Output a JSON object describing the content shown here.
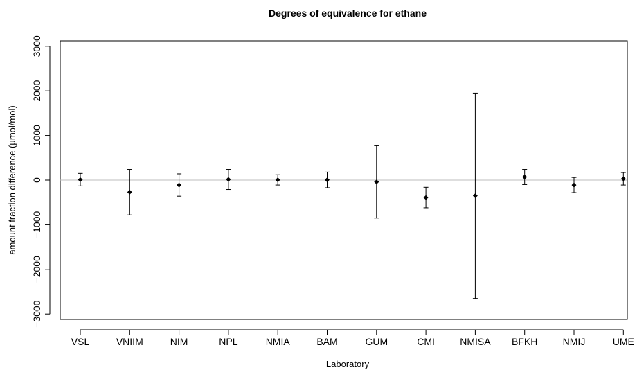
{
  "chart_data": {
    "type": "scatter",
    "title": "Degrees of equivalence for ethane",
    "xlabel": "Laboratory",
    "ylabel": "amount fraction difference (µmol/mol)",
    "categories": [
      "VSL",
      "VNIIM",
      "NIM",
      "NPL",
      "NMIA",
      "BAM",
      "GUM",
      "CMI",
      "NMISA",
      "BFKH",
      "NMIJ",
      "UME"
    ],
    "series": [
      {
        "values": [
          10,
          -270,
          -110,
          15,
          5,
          5,
          -40,
          -390,
          -350,
          70,
          -110,
          30
        ],
        "upper": [
          150,
          240,
          140,
          240,
          120,
          180,
          770,
          -160,
          1950,
          240,
          60,
          170
        ],
        "lower": [
          -130,
          -780,
          -360,
          -210,
          -110,
          -170,
          -850,
          -620,
          -2650,
          -100,
          -280,
          -110
        ]
      }
    ],
    "ylim": [
      -3100,
      3100
    ],
    "yticks": [
      3000,
      2000,
      1000,
      0,
      -1000,
      -2000,
      -3000
    ],
    "ytick_labels": [
      "3000",
      "2000",
      "1000",
      "0",
      "−1000",
      "−2000",
      "−3000"
    ],
    "reference_line": 0,
    "reference_color": "#bdbdbd",
    "marker": "diamond",
    "grid": false
  }
}
